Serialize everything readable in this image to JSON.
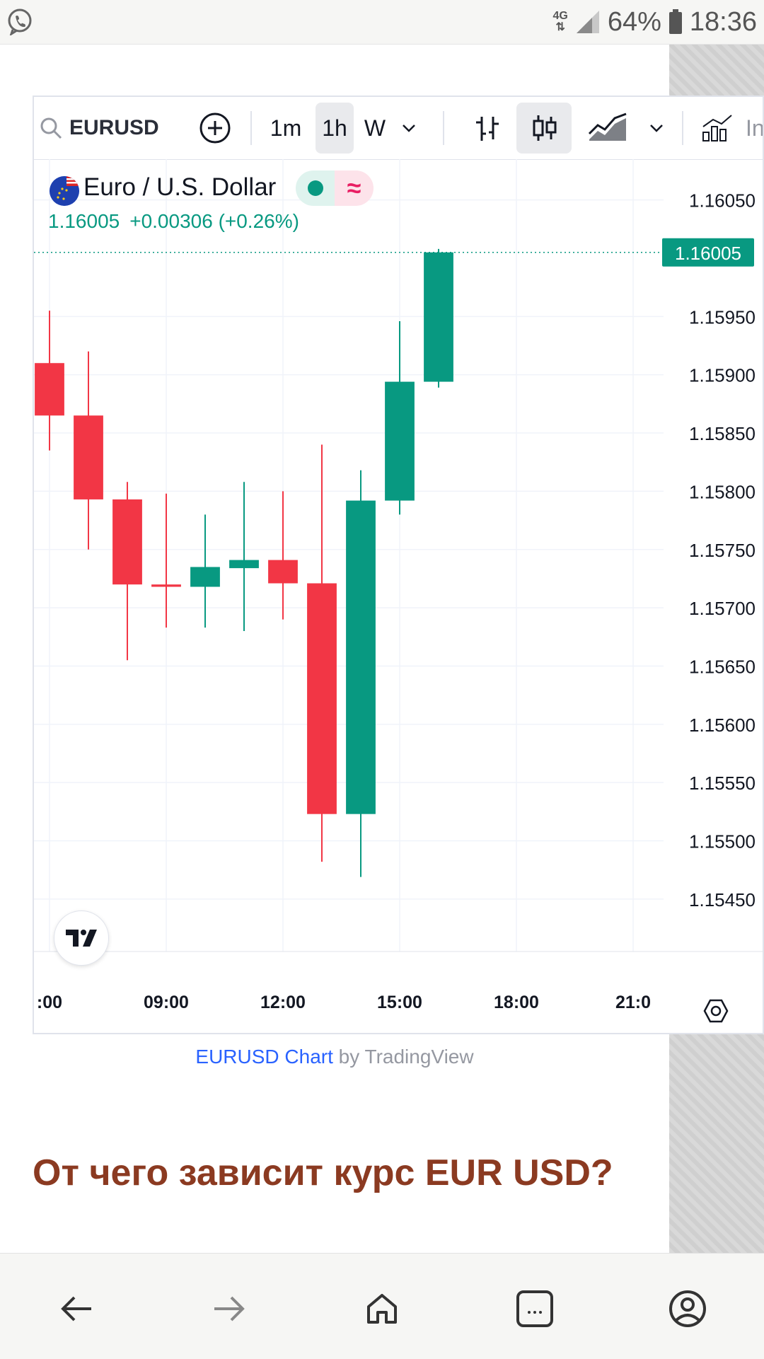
{
  "status_bar": {
    "network": "4G",
    "battery": "64%",
    "time": "18:36"
  },
  "toolbar": {
    "symbol": "EURUSD",
    "intervals": [
      "1m",
      "1h",
      "W"
    ],
    "selected_interval": "1h",
    "partial_label": "In"
  },
  "legend": {
    "title": "Euro / U.S. Dollar",
    "price": "1.16005",
    "change": "+0.00306 (+0.26%)",
    "wave_symbol": "≈"
  },
  "chart_data": {
    "type": "candlestick",
    "y_ticks": [
      1.1605,
      1.1595,
      1.159,
      1.1585,
      1.158,
      1.1575,
      1.157,
      1.1565,
      1.156,
      1.1555,
      1.155,
      1.1545
    ],
    "y_tick_labels": [
      "1.16050",
      "1.15950",
      "1.15900",
      "1.15850",
      "1.15800",
      "1.15750",
      "1.15700",
      "1.15650",
      "1.15600",
      "1.15550",
      "1.15500",
      "1.15450"
    ],
    "ylim": [
      1.15405,
      1.16085
    ],
    "x_tick_labels": [
      ":00",
      "09:00",
      "12:00",
      "15:00",
      "18:00",
      "21:0"
    ],
    "x_tick_hours": [
      6,
      9,
      12,
      15,
      18,
      21
    ],
    "xlim_hours": [
      5.6,
      21.6
    ],
    "current_price": 1.16005,
    "current_price_label": "1.16005",
    "candles": [
      {
        "t": 6,
        "o": 1.1591,
        "h": 1.15955,
        "l": 1.15835,
        "c": 1.15865
      },
      {
        "t": 7,
        "o": 1.15865,
        "h": 1.1592,
        "l": 1.1575,
        "c": 1.15793
      },
      {
        "t": 8,
        "o": 1.15793,
        "h": 1.15808,
        "l": 1.15655,
        "c": 1.1572
      },
      {
        "t": 9,
        "o": 1.1572,
        "h": 1.15798,
        "l": 1.15683,
        "c": 1.15718
      },
      {
        "t": 10,
        "o": 1.15718,
        "h": 1.1578,
        "l": 1.15683,
        "c": 1.15735
      },
      {
        "t": 11,
        "o": 1.15734,
        "h": 1.15808,
        "l": 1.1568,
        "c": 1.15741
      },
      {
        "t": 12,
        "o": 1.15741,
        "h": 1.158,
        "l": 1.1569,
        "c": 1.15721
      },
      {
        "t": 13,
        "o": 1.15721,
        "h": 1.1584,
        "l": 1.15482,
        "c": 1.15523
      },
      {
        "t": 14,
        "o": 1.15523,
        "h": 1.15818,
        "l": 1.15469,
        "c": 1.15792
      },
      {
        "t": 15,
        "o": 1.15792,
        "h": 1.15946,
        "l": 1.1578,
        "c": 1.15894
      },
      {
        "t": 16,
        "o": 1.15894,
        "h": 1.16008,
        "l": 1.15889,
        "c": 1.16005
      }
    ],
    "colors": {
      "up": "#089981",
      "down": "#f23645"
    }
  },
  "below_chart": {
    "link_text": "EURUSD Chart",
    "by_text": " by TradingView"
  },
  "article": {
    "heading": "От чего зависит курс EUR USD?"
  }
}
